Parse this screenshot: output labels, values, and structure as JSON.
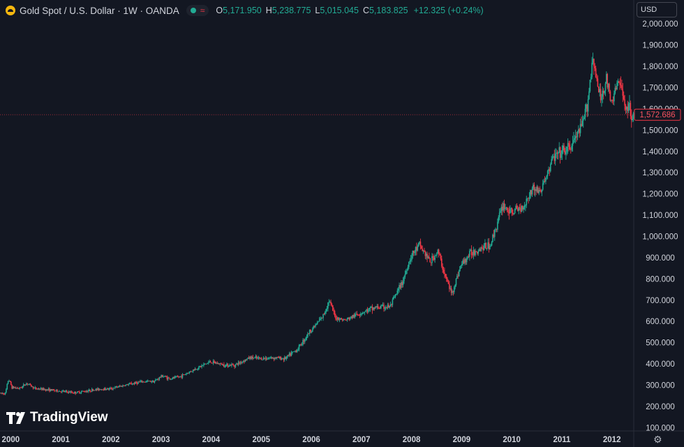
{
  "header": {
    "title": "Gold Spot / U.S. Dollar · 1W · OANDA",
    "ohlc": [
      {
        "k": "O",
        "v": "5,171.950"
      },
      {
        "k": "H",
        "v": "5,238.775"
      },
      {
        "k": "L",
        "v": "5,015.045"
      },
      {
        "k": "C",
        "v": "5,183.825"
      }
    ],
    "change": "+12.325 (+0.24%)"
  },
  "currency": "USD",
  "logo": "TradingView",
  "colors": {
    "up": "#22ab94",
    "down": "#f23645",
    "bg": "#131722",
    "grid": "#2a2e39",
    "text": "#d1d4dc"
  },
  "chart_data": {
    "type": "candlestick",
    "title": "Gold Spot / U.S. Dollar · 1W · OANDA",
    "price_label": "1,572.686",
    "y_ticks": [
      100000,
      200000,
      300000,
      400000,
      500000,
      600000,
      700000,
      800000,
      900000,
      1000000,
      1100000,
      1200000,
      1300000,
      1400000,
      1500000,
      1600000,
      1700000,
      1800000,
      1900000,
      2000000
    ],
    "y_tick_labels": [
      "100.000",
      "200.000",
      "300.000",
      "400.000",
      "500.000",
      "600.000",
      "700.000",
      "800.000",
      "900.000",
      "1,000.000",
      "1,100.000",
      "1,200.000",
      "1,300.000",
      "1,400.000",
      "1,500.000",
      "1,600.000",
      "1,700.000",
      "1,800.000",
      "1,900.000",
      "2,000.000"
    ],
    "ylim": [
      85000,
      2030000
    ],
    "x_ticks": [
      "2000",
      "2001",
      "2002",
      "2003",
      "2004",
      "2005",
      "2006",
      "2007",
      "2008",
      "2009",
      "2010",
      "2011",
      "2012"
    ],
    "x_range": [
      1999.8,
      2012.45
    ],
    "path": [
      [
        1999.8,
        262000
      ],
      [
        1999.92,
        262000
      ],
      [
        1999.98,
        330000
      ],
      [
        2000.05,
        290000
      ],
      [
        2000.2,
        285000
      ],
      [
        2000.35,
        310000
      ],
      [
        2000.5,
        285000
      ],
      [
        2000.8,
        278000
      ],
      [
        2001.0,
        272000
      ],
      [
        2001.3,
        265000
      ],
      [
        2001.6,
        275000
      ],
      [
        2001.8,
        282000
      ],
      [
        2002.0,
        283000
      ],
      [
        2002.3,
        300000
      ],
      [
        2002.6,
        315000
      ],
      [
        2002.9,
        320000
      ],
      [
        2003.05,
        345000
      ],
      [
        2003.2,
        330000
      ],
      [
        2003.4,
        340000
      ],
      [
        2003.7,
        375000
      ],
      [
        2004.0,
        410000
      ],
      [
        2004.3,
        395000
      ],
      [
        2004.5,
        395000
      ],
      [
        2004.8,
        430000
      ],
      [
        2005.0,
        425000
      ],
      [
        2005.3,
        430000
      ],
      [
        2005.5,
        425000
      ],
      [
        2005.75,
        470000
      ],
      [
        2006.0,
        555000
      ],
      [
        2006.25,
        620000
      ],
      [
        2006.38,
        700000
      ],
      [
        2006.5,
        620000
      ],
      [
        2006.7,
        605000
      ],
      [
        2007.0,
        640000
      ],
      [
        2007.3,
        665000
      ],
      [
        2007.6,
        670000
      ],
      [
        2007.85,
        790000
      ],
      [
        2008.0,
        900000
      ],
      [
        2008.18,
        960000
      ],
      [
        2008.4,
        880000
      ],
      [
        2008.55,
        930000
      ],
      [
        2008.7,
        810000
      ],
      [
        2008.83,
        730000
      ],
      [
        2009.0,
        860000
      ],
      [
        2009.2,
        920000
      ],
      [
        2009.4,
        945000
      ],
      [
        2009.6,
        960000
      ],
      [
        2009.85,
        1150000
      ],
      [
        2010.0,
        1110000
      ],
      [
        2010.25,
        1140000
      ],
      [
        2010.45,
        1230000
      ],
      [
        2010.6,
        1210000
      ],
      [
        2010.85,
        1370000
      ],
      [
        2011.0,
        1390000
      ],
      [
        2011.2,
        1420000
      ],
      [
        2011.45,
        1530000
      ],
      [
        2011.55,
        1650000
      ],
      [
        2011.65,
        1860000
      ],
      [
        2011.72,
        1720000
      ],
      [
        2011.8,
        1650000
      ],
      [
        2011.92,
        1740000
      ],
      [
        2012.0,
        1620000
      ],
      [
        2012.15,
        1730000
      ],
      [
        2012.3,
        1620000
      ],
      [
        2012.45,
        1575000
      ]
    ]
  }
}
